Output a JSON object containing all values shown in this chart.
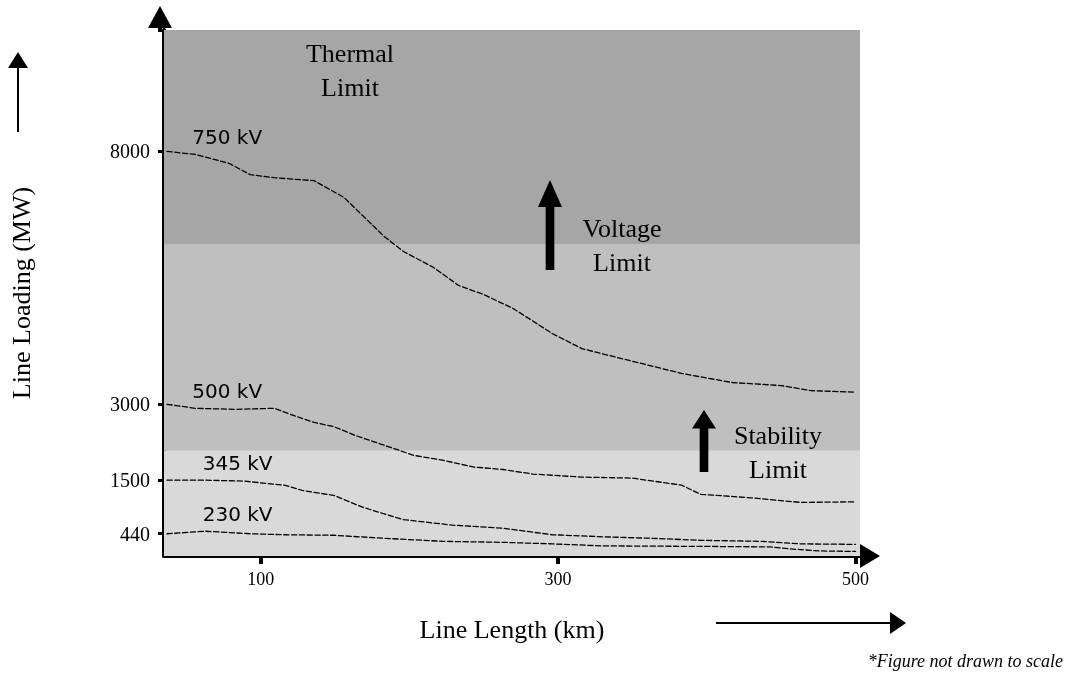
{
  "chart_data": {
    "type": "line",
    "xlabel": "Line Length (km)",
    "ylabel": "Line Loading (MW)",
    "xlim": [
      35,
      503
    ],
    "xticks": [
      100,
      300,
      500
    ],
    "ylim": [
      0,
      10400
    ],
    "yticks": [
      440,
      1500,
      3000,
      8000
    ],
    "line_style": "dashed",
    "marker": "none",
    "bands": [
      {
        "axis": "y",
        "from": 0,
        "to": 2080,
        "color": "#d9d9d9"
      },
      {
        "axis": "y",
        "from": 2080,
        "to": 6170,
        "color": "#bfbfbf"
      },
      {
        "axis": "y",
        "from": 6170,
        "to": 10400,
        "color": "#a6a6a6"
      }
    ],
    "annotations": [
      "Thermal\nLimit",
      "Voltage\nLimit",
      "Stability\nLimit",
      "*Figure not drawn to scale"
    ],
    "series": [
      {
        "name": "750 kV",
        "color": "#000000",
        "x": [
          37,
          56,
          79,
          93,
          109,
          136,
          156,
          169,
          183,
          196,
          216,
          233,
          250,
          270,
          296,
          316,
          350,
          383,
          417,
          450,
          470,
          500
        ],
        "values": [
          8000,
          7940,
          7760,
          7540,
          7480,
          7420,
          7090,
          6720,
          6320,
          6020,
          5710,
          5350,
          5170,
          4890,
          4400,
          4100,
          3850,
          3610,
          3430,
          3370,
          3270,
          3240
        ]
      },
      {
        "name": "500 kV",
        "color": "#000000",
        "x": [
          37,
          56,
          83,
          109,
          123,
          136,
          149,
          163,
          183,
          203,
          223,
          243,
          263,
          283,
          316,
          350,
          383,
          396,
          430,
          463,
          500
        ],
        "values": [
          3000,
          2920,
          2900,
          2920,
          2770,
          2640,
          2560,
          2390,
          2190,
          1990,
          1890,
          1760,
          1710,
          1620,
          1560,
          1540,
          1400,
          1220,
          1150,
          1060,
          1070
        ]
      },
      {
        "name": "345 kV",
        "color": "#000000",
        "x": [
          37,
          63,
          89,
          116,
          129,
          149,
          169,
          196,
          229,
          263,
          296,
          330,
          363,
          396,
          437,
          463,
          500
        ],
        "values": [
          1500,
          1500,
          1480,
          1400,
          1290,
          1200,
          960,
          720,
          610,
          550,
          420,
          380,
          350,
          310,
          290,
          240,
          230
        ]
      },
      {
        "name": "230 kV",
        "color": "#000000",
        "x": [
          37,
          63,
          93,
          116,
          149,
          183,
          223,
          263,
          296,
          330,
          396,
          443,
          456,
          476,
          500
        ],
        "values": [
          440,
          490,
          440,
          420,
          410,
          350,
          290,
          270,
          240,
          200,
          190,
          180,
          140,
          100,
          90
        ]
      }
    ]
  }
}
